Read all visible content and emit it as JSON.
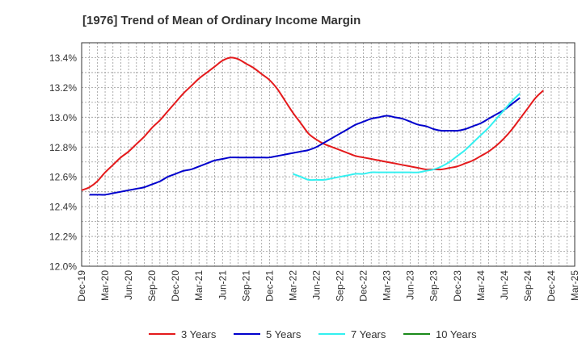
{
  "chart_data": {
    "type": "line",
    "title": "[1976]  Trend of Mean of Ordinary Income Margin",
    "xlabel": "",
    "ylabel": "",
    "x_ticks": [
      "Dec-19",
      "Mar-20",
      "Jun-20",
      "Sep-20",
      "Dec-20",
      "Mar-21",
      "Jun-21",
      "Sep-21",
      "Dec-21",
      "Mar-22",
      "Jun-22",
      "Sep-22",
      "Dec-22",
      "Mar-23",
      "Jun-23",
      "Sep-23",
      "Dec-23",
      "Mar-24",
      "Jun-24",
      "Sep-24",
      "Dec-24",
      "Mar-25"
    ],
    "y_ticks": [
      "12.0%",
      "12.2%",
      "12.4%",
      "12.6%",
      "12.8%",
      "13.0%",
      "13.2%",
      "13.4%"
    ],
    "ylim": [
      12.0,
      13.5
    ],
    "grid": "dashed",
    "legend_position": "bottom",
    "series": [
      {
        "name": "3 Years",
        "color": "#e41a1c",
        "points": [
          [
            "Dec-19",
            12.51
          ],
          [
            "Jan-20",
            12.53
          ],
          [
            "Feb-20",
            12.57
          ],
          [
            "Mar-20",
            12.63
          ],
          [
            "Apr-20",
            12.68
          ],
          [
            "May-20",
            12.73
          ],
          [
            "Jun-20",
            12.77
          ],
          [
            "Jul-20",
            12.82
          ],
          [
            "Aug-20",
            12.87
          ],
          [
            "Sep-20",
            12.93
          ],
          [
            "Oct-20",
            12.98
          ],
          [
            "Nov-20",
            13.04
          ],
          [
            "Dec-20",
            13.1
          ],
          [
            "Jan-21",
            13.16
          ],
          [
            "Feb-21",
            13.21
          ],
          [
            "Mar-21",
            13.26
          ],
          [
            "Apr-21",
            13.3
          ],
          [
            "May-21",
            13.34
          ],
          [
            "Jun-21",
            13.38
          ],
          [
            "Jul-21",
            13.4
          ],
          [
            "Aug-21",
            13.39
          ],
          [
            "Sep-21",
            13.36
          ],
          [
            "Oct-21",
            13.33
          ],
          [
            "Nov-21",
            13.29
          ],
          [
            "Dec-21",
            13.25
          ],
          [
            "Jan-22",
            13.19
          ],
          [
            "Feb-22",
            13.11
          ],
          [
            "Mar-22",
            13.03
          ],
          [
            "Apr-22",
            12.96
          ],
          [
            "May-22",
            12.89
          ],
          [
            "Jun-22",
            12.85
          ],
          [
            "Jul-22",
            12.82
          ],
          [
            "Aug-22",
            12.8
          ],
          [
            "Sep-22",
            12.78
          ],
          [
            "Oct-22",
            12.76
          ],
          [
            "Nov-22",
            12.74
          ],
          [
            "Dec-22",
            12.73
          ],
          [
            "Jan-23",
            12.72
          ],
          [
            "Feb-23",
            12.71
          ],
          [
            "Mar-23",
            12.7
          ],
          [
            "Apr-23",
            12.69
          ],
          [
            "May-23",
            12.68
          ],
          [
            "Jun-23",
            12.67
          ],
          [
            "Jul-23",
            12.66
          ],
          [
            "Aug-23",
            12.65
          ],
          [
            "Sep-23",
            12.65
          ],
          [
            "Oct-23",
            12.65
          ],
          [
            "Nov-23",
            12.66
          ],
          [
            "Dec-23",
            12.67
          ],
          [
            "Jan-24",
            12.69
          ],
          [
            "Feb-24",
            12.71
          ],
          [
            "Mar-24",
            12.74
          ],
          [
            "Apr-24",
            12.77
          ],
          [
            "May-24",
            12.81
          ],
          [
            "Jun-24",
            12.86
          ],
          [
            "Jul-24",
            12.92
          ],
          [
            "Aug-24",
            12.99
          ],
          [
            "Sep-24",
            13.06
          ],
          [
            "Oct-24",
            13.13
          ],
          [
            "Nov-24",
            13.18
          ]
        ]
      },
      {
        "name": "5 Years",
        "color": "#0000cc",
        "points": [
          [
            "Jan-20",
            12.48
          ],
          [
            "Feb-20",
            12.48
          ],
          [
            "Mar-20",
            12.48
          ],
          [
            "Apr-20",
            12.49
          ],
          [
            "May-20",
            12.5
          ],
          [
            "Jun-20",
            12.51
          ],
          [
            "Jul-20",
            12.52
          ],
          [
            "Aug-20",
            12.53
          ],
          [
            "Sep-20",
            12.55
          ],
          [
            "Oct-20",
            12.57
          ],
          [
            "Nov-20",
            12.6
          ],
          [
            "Dec-20",
            12.62
          ],
          [
            "Jan-21",
            12.64
          ],
          [
            "Feb-21",
            12.65
          ],
          [
            "Mar-21",
            12.67
          ],
          [
            "Apr-21",
            12.69
          ],
          [
            "May-21",
            12.71
          ],
          [
            "Jun-21",
            12.72
          ],
          [
            "Jul-21",
            12.73
          ],
          [
            "Aug-21",
            12.73
          ],
          [
            "Sep-21",
            12.73
          ],
          [
            "Oct-21",
            12.73
          ],
          [
            "Nov-21",
            12.73
          ],
          [
            "Dec-21",
            12.73
          ],
          [
            "Jan-22",
            12.74
          ],
          [
            "Feb-22",
            12.75
          ],
          [
            "Mar-22",
            12.76
          ],
          [
            "Apr-22",
            12.77
          ],
          [
            "May-22",
            12.78
          ],
          [
            "Jun-22",
            12.8
          ],
          [
            "Jul-22",
            12.83
          ],
          [
            "Aug-22",
            12.86
          ],
          [
            "Sep-22",
            12.89
          ],
          [
            "Oct-22",
            12.92
          ],
          [
            "Nov-22",
            12.95
          ],
          [
            "Dec-22",
            12.97
          ],
          [
            "Jan-23",
            12.99
          ],
          [
            "Feb-23",
            13.0
          ],
          [
            "Mar-23",
            13.01
          ],
          [
            "Apr-23",
            13.0
          ],
          [
            "May-23",
            12.99
          ],
          [
            "Jun-23",
            12.97
          ],
          [
            "Jul-23",
            12.95
          ],
          [
            "Aug-23",
            12.94
          ],
          [
            "Sep-23",
            12.92
          ],
          [
            "Oct-23",
            12.91
          ],
          [
            "Nov-23",
            12.91
          ],
          [
            "Dec-23",
            12.91
          ],
          [
            "Jan-24",
            12.92
          ],
          [
            "Feb-24",
            12.94
          ],
          [
            "Mar-24",
            12.96
          ],
          [
            "Apr-24",
            12.99
          ],
          [
            "May-24",
            13.02
          ],
          [
            "Jun-24",
            13.05
          ],
          [
            "Jul-24",
            13.09
          ],
          [
            "Aug-24",
            13.13
          ]
        ]
      },
      {
        "name": "7 Years",
        "color": "#33f0f0",
        "points": [
          [
            "Mar-22",
            12.62
          ],
          [
            "Apr-22",
            12.6
          ],
          [
            "May-22",
            12.58
          ],
          [
            "Jun-22",
            12.58
          ],
          [
            "Jul-22",
            12.58
          ],
          [
            "Aug-22",
            12.59
          ],
          [
            "Sep-22",
            12.6
          ],
          [
            "Oct-22",
            12.61
          ],
          [
            "Nov-22",
            12.62
          ],
          [
            "Dec-22",
            12.62
          ],
          [
            "Jan-23",
            12.63
          ],
          [
            "Feb-23",
            12.63
          ],
          [
            "Mar-23",
            12.63
          ],
          [
            "Apr-23",
            12.63
          ],
          [
            "May-23",
            12.63
          ],
          [
            "Jun-23",
            12.63
          ],
          [
            "Jul-23",
            12.63
          ],
          [
            "Aug-23",
            12.64
          ],
          [
            "Sep-23",
            12.65
          ],
          [
            "Oct-23",
            12.67
          ],
          [
            "Nov-23",
            12.7
          ],
          [
            "Dec-23",
            12.74
          ],
          [
            "Jan-24",
            12.78
          ],
          [
            "Feb-24",
            12.83
          ],
          [
            "Mar-24",
            12.88
          ],
          [
            "Apr-24",
            12.93
          ],
          [
            "May-24",
            12.99
          ],
          [
            "Jun-24",
            13.05
          ],
          [
            "Jul-24",
            13.11
          ],
          [
            "Aug-24",
            13.16
          ]
        ]
      },
      {
        "name": "10 Years",
        "color": "#1a8a1a",
        "points": []
      }
    ]
  }
}
